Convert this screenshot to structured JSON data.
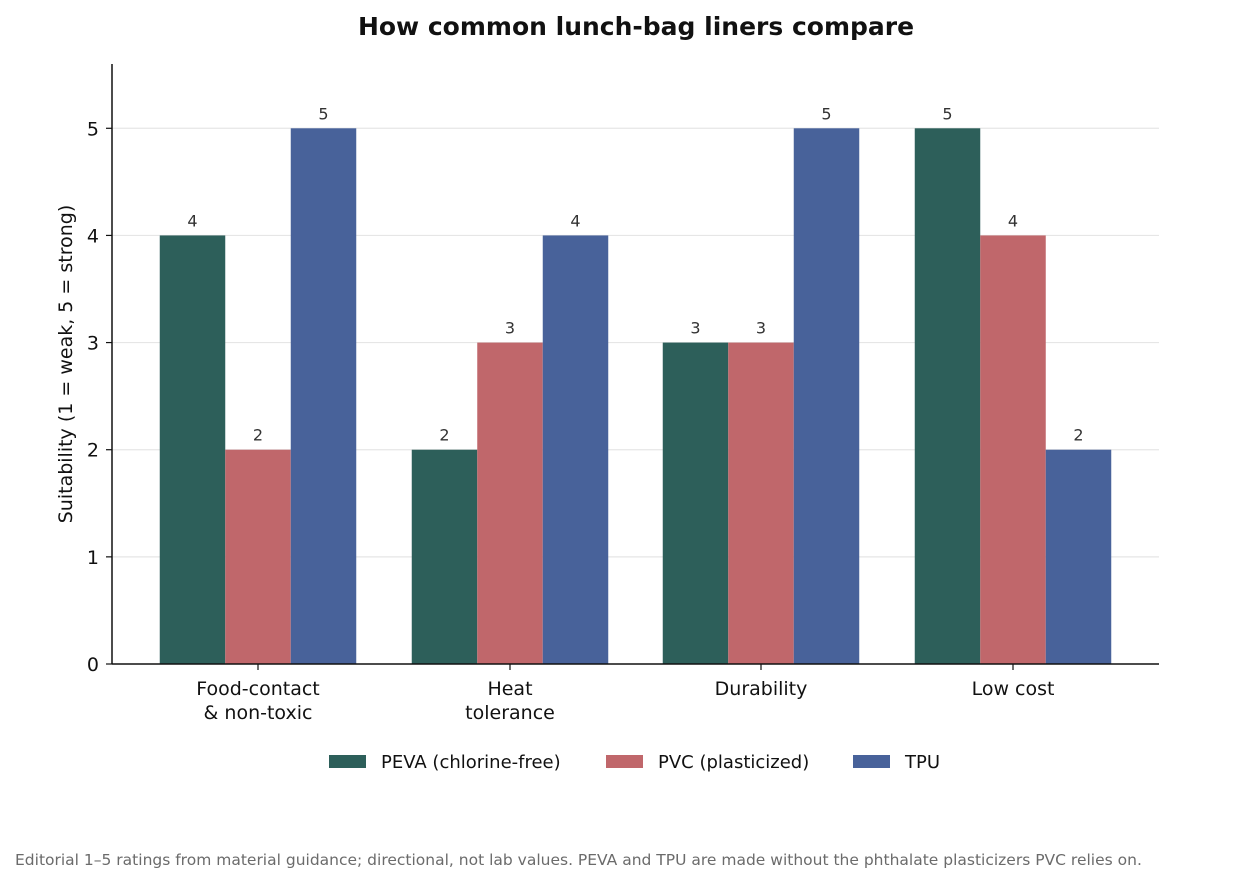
{
  "chart_data": {
    "type": "bar",
    "title": "How common lunch-bag liners compare",
    "ylabel": "Suitability (1 = weak, 5 = strong)",
    "xlabel": "",
    "categories": [
      "Food-contact\n& non-toxic",
      "Heat\ntolerance",
      "Durability",
      "Low cost"
    ],
    "series": [
      {
        "name": "PEVA (chlorine-free)",
        "color": "#2d5f5a",
        "values": [
          4,
          2,
          3,
          5
        ]
      },
      {
        "name": "PVC (plasticized)",
        "color": "#c0676b",
        "values": [
          2,
          3,
          3,
          4
        ]
      },
      {
        "name": "TPU",
        "color": "#48629a",
        "values": [
          5,
          4,
          5,
          2
        ]
      }
    ],
    "yticks": [
      0,
      1,
      2,
      3,
      4,
      5
    ],
    "ylim": [
      0,
      5.6
    ],
    "grid": "horizontal",
    "legend": "bottom-center",
    "data_labels": true
  },
  "footnote": "Editorial 1–5 ratings from material guidance; directional, not lab values. PEVA and TPU are made without the phthalate plasticizers PVC relies on."
}
